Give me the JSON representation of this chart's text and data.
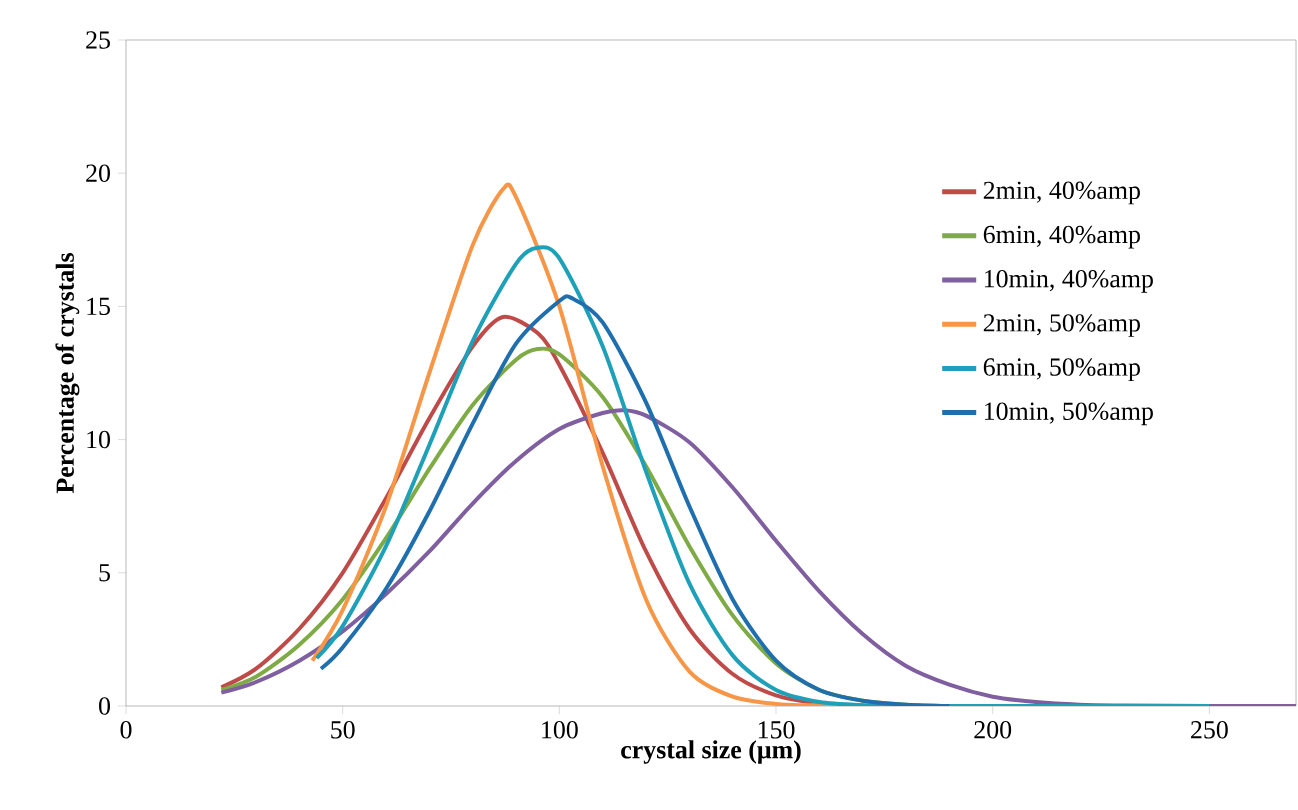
{
  "chart_data": {
    "type": "line",
    "xlabel": "crystal size (μm)",
    "ylabel": "Percentage of crystals",
    "xlim": [
      0,
      270
    ],
    "ylim": [
      0,
      25
    ],
    "xticks": [
      0,
      50,
      100,
      150,
      200,
      250
    ],
    "yticks": [
      0,
      5,
      10,
      15,
      20,
      25
    ],
    "legend": "right",
    "marker": "none",
    "line_style": "solid",
    "series": [
      {
        "name": "2min, 40%amp",
        "color": "#be4b48",
        "x": [
          22,
          30,
          40,
          50,
          60,
          70,
          80,
          87,
          95,
          100,
          110,
          120,
          130,
          140,
          150,
          160,
          170,
          180
        ],
        "values": [
          0.7,
          1.4,
          2.9,
          5.0,
          7.8,
          10.8,
          13.5,
          14.6,
          14.0,
          12.8,
          9.5,
          5.8,
          2.9,
          1.2,
          0.4,
          0.1,
          0.02,
          0
        ]
      },
      {
        "name": "6min, 40%amp",
        "color": "#7eab45",
        "x": [
          22,
          30,
          40,
          50,
          60,
          70,
          80,
          90,
          95,
          100,
          110,
          120,
          130,
          140,
          150,
          160,
          170,
          180,
          190
        ],
        "values": [
          0.6,
          1.1,
          2.3,
          4.0,
          6.3,
          8.9,
          11.3,
          13.0,
          13.4,
          13.2,
          11.6,
          9.0,
          6.0,
          3.4,
          1.6,
          0.6,
          0.2,
          0.05,
          0
        ]
      },
      {
        "name": "10min, 40%amp",
        "color": "#7f5fa0",
        "x": [
          22,
          30,
          40,
          50,
          60,
          70,
          80,
          90,
          100,
          110,
          115,
          120,
          130,
          140,
          150,
          160,
          170,
          180,
          190,
          200,
          210,
          220,
          230,
          250,
          270
        ],
        "values": [
          0.5,
          0.9,
          1.7,
          2.8,
          4.2,
          5.8,
          7.6,
          9.2,
          10.4,
          11.0,
          11.1,
          10.9,
          9.9,
          8.2,
          6.2,
          4.3,
          2.7,
          1.5,
          0.8,
          0.35,
          0.15,
          0.05,
          0.02,
          0,
          0
        ]
      },
      {
        "name": "2min, 50%amp",
        "color": "#f79646",
        "x": [
          43,
          50,
          60,
          70,
          80,
          87,
          90,
          100,
          110,
          120,
          130,
          140,
          150,
          160,
          170
        ],
        "values": [
          1.7,
          3.6,
          7.5,
          12.5,
          17.3,
          19.4,
          19.1,
          15.0,
          9.0,
          4.0,
          1.3,
          0.35,
          0.08,
          0.02,
          0
        ]
      },
      {
        "name": "6min, 50%amp",
        "color": "#1ea0b8",
        "x": [
          44,
          50,
          60,
          70,
          80,
          90,
          95,
          100,
          110,
          120,
          130,
          140,
          150,
          160,
          170,
          180,
          250
        ],
        "values": [
          1.8,
          3.0,
          6.0,
          9.8,
          13.7,
          16.6,
          17.2,
          16.8,
          13.5,
          8.8,
          4.6,
          1.9,
          0.6,
          0.15,
          0.03,
          0,
          0
        ]
      },
      {
        "name": "10min, 50%amp",
        "color": "#1f6fae",
        "x": [
          45,
          50,
          60,
          70,
          80,
          90,
          100,
          103,
          110,
          120,
          130,
          140,
          150,
          160,
          170,
          180,
          190
        ],
        "values": [
          1.4,
          2.2,
          4.4,
          7.3,
          10.6,
          13.6,
          15.2,
          15.3,
          14.4,
          11.4,
          7.5,
          4.0,
          1.7,
          0.6,
          0.2,
          0.05,
          0
        ]
      }
    ]
  }
}
